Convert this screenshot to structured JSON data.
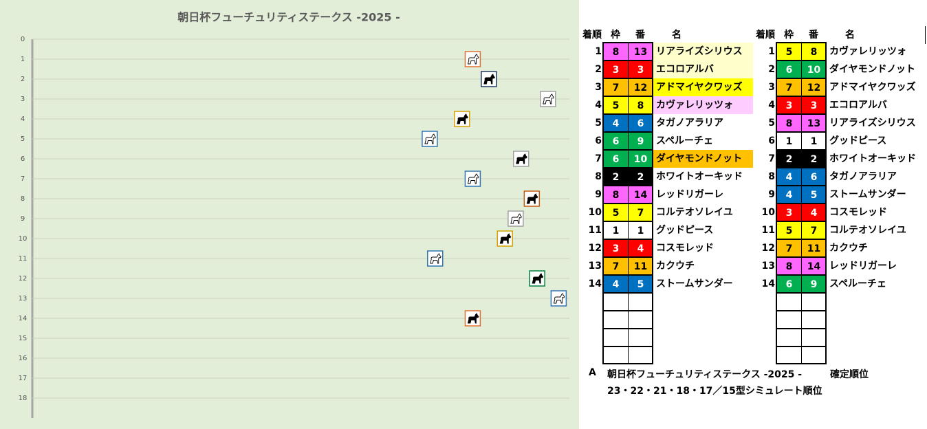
{
  "chart_data": {
    "type": "scatter",
    "title": "朝日杯フューチュリティステークス -2025 -",
    "x": [
      82,
      85,
      96,
      80,
      74,
      91,
      82,
      93,
      90,
      88,
      75,
      94,
      98,
      82
    ],
    "values": [
      1,
      2,
      3,
      4,
      5,
      6,
      7,
      8,
      9,
      10,
      11,
      12,
      13,
      14
    ],
    "colors": [
      "#e07030",
      "#1f3864",
      "#a0a0a0",
      "#d4a000",
      "#2e75b6",
      "#a0a0a0",
      "#2e75b6",
      "#c55a11",
      "#a0a0a0",
      "#d4a000",
      "#2e75b6",
      "#00803c",
      "#2e75b6",
      "#e07030"
    ],
    "xlim": [
      0,
      100
    ],
    "ylim": [
      0,
      18
    ],
    "y_inverted": true,
    "yticks": [
      0,
      1,
      2,
      3,
      4,
      5,
      6,
      7,
      8,
      9,
      10,
      11,
      12,
      13,
      14,
      15,
      16,
      17,
      18
    ],
    "grid": true
  },
  "tables": [
    {
      "header": [
        "着順",
        "枠",
        "番",
        "名"
      ],
      "empty_rows": 4,
      "rows": [
        {
          "rank": 1,
          "frame": 8,
          "number": 13,
          "name": "リアライズシリウス",
          "bg": "#ffffcc"
        },
        {
          "rank": 2,
          "frame": 3,
          "number": 3,
          "name": "エコロアルバ",
          "bg": "#ffffcc"
        },
        {
          "rank": 3,
          "frame": 7,
          "number": 12,
          "name": "アドマイヤクワッズ",
          "bg": "#ffff00"
        },
        {
          "rank": 4,
          "frame": 5,
          "number": 8,
          "name": "カヴァレリッツォ",
          "bg": "#ffccff"
        },
        {
          "rank": 5,
          "frame": 4,
          "number": 6,
          "name": "タガノアラリア"
        },
        {
          "rank": 6,
          "frame": 6,
          "number": 9,
          "name": "スペルーチェ"
        },
        {
          "rank": 7,
          "frame": 6,
          "number": 10,
          "name": "ダイヤモンドノット",
          "bg": "#ffc000"
        },
        {
          "rank": 8,
          "frame": 2,
          "number": 2,
          "name": "ホワイトオーキッド"
        },
        {
          "rank": 9,
          "frame": 8,
          "number": 14,
          "name": "レッドリガーレ"
        },
        {
          "rank": 10,
          "frame": 5,
          "number": 7,
          "name": "コルテオソレイユ"
        },
        {
          "rank": 11,
          "frame": 1,
          "number": 1,
          "name": "グッドピース"
        },
        {
          "rank": 12,
          "frame": 3,
          "number": 4,
          "name": "コスモレッド"
        },
        {
          "rank": 13,
          "frame": 7,
          "number": 11,
          "name": "カクウチ"
        },
        {
          "rank": 14,
          "frame": 4,
          "number": 5,
          "name": "ストームサンダー"
        }
      ]
    },
    {
      "header": [
        "着順",
        "枠",
        "番",
        "名"
      ],
      "empty_rows": 4,
      "rows": [
        {
          "rank": 1,
          "frame": 5,
          "number": 8,
          "name": "カヴァレリッツォ"
        },
        {
          "rank": 2,
          "frame": 6,
          "number": 10,
          "name": "ダイヤモンドノット"
        },
        {
          "rank": 3,
          "frame": 7,
          "number": 12,
          "name": "アドマイヤクワッズ"
        },
        {
          "rank": 4,
          "frame": 3,
          "number": 3,
          "name": "エコロアルバ"
        },
        {
          "rank": 5,
          "frame": 8,
          "number": 13,
          "name": "リアライズシリウス"
        },
        {
          "rank": 6,
          "frame": 1,
          "number": 1,
          "name": "グッドピース"
        },
        {
          "rank": 7,
          "frame": 2,
          "number": 2,
          "name": "ホワイトオーキッド"
        },
        {
          "rank": 8,
          "frame": 4,
          "number": 6,
          "name": "タガノアラリア"
        },
        {
          "rank": 9,
          "frame": 4,
          "number": 5,
          "name": "ストームサンダー"
        },
        {
          "rank": 10,
          "frame": 3,
          "number": 4,
          "name": "コスモレッド"
        },
        {
          "rank": 11,
          "frame": 5,
          "number": 7,
          "name": "コルテオソレイユ"
        },
        {
          "rank": 12,
          "frame": 7,
          "number": 11,
          "name": "カクウチ"
        },
        {
          "rank": 13,
          "frame": 8,
          "number": 14,
          "name": "レッドリガーレ"
        },
        {
          "rank": 14,
          "frame": 6,
          "number": 9,
          "name": "スペルーチェ"
        }
      ]
    }
  ],
  "footer": {
    "label": "A",
    "race": "朝日杯フューチュリティステークス -2025 -",
    "right_note": "確定順位",
    "left_note": "23・22・21・18・17／15型シミュレート順位"
  }
}
